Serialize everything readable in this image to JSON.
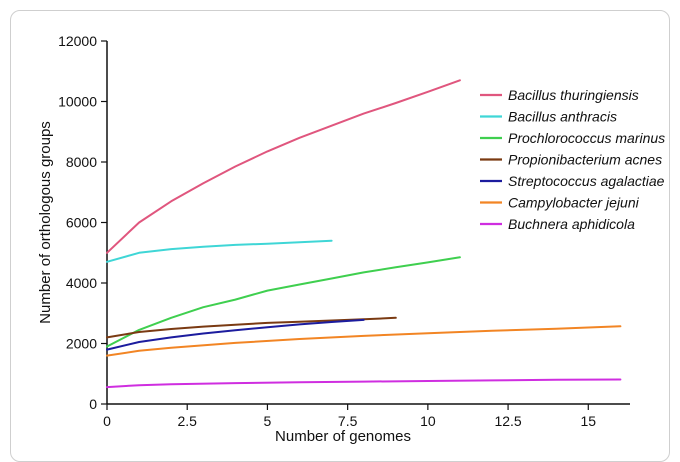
{
  "chart_data": {
    "type": "line",
    "xlabel": "Number of genomes",
    "ylabel": "Number of orthologous groups",
    "xlim": [
      0,
      16.3
    ],
    "ylim": [
      0,
      12000
    ],
    "x_ticks": [
      0,
      2.5,
      5,
      7.5,
      10,
      12.5,
      15
    ],
    "x_tick_labels": [
      "0",
      "2.5",
      "5",
      "7.5",
      "10",
      "12.5",
      "15"
    ],
    "y_ticks": [
      0,
      2000,
      4000,
      6000,
      8000,
      10000,
      12000
    ],
    "y_tick_labels": [
      "0",
      "2000",
      "4000",
      "6000",
      "8000",
      "10000",
      "12000"
    ],
    "grid": false,
    "legend_position": "top-right",
    "series": [
      {
        "name": "Bacillus thuringiensis",
        "color": "#e0567e",
        "x": [
          0,
          1,
          2,
          3,
          4,
          5,
          6,
          7,
          8,
          9,
          10,
          11
        ],
        "y": [
          5000,
          6000,
          6700,
          7300,
          7850,
          8350,
          8800,
          9200,
          9600,
          9950,
          10320,
          10700
        ]
      },
      {
        "name": "Bacillus anthracis",
        "color": "#3fd6d6",
        "x": [
          0,
          1,
          2,
          3,
          4,
          5,
          6,
          7
        ],
        "y": [
          4700,
          5000,
          5120,
          5200,
          5260,
          5300,
          5350,
          5400
        ]
      },
      {
        "name": "Prochlorococcus marinus",
        "color": "#3fcf4f",
        "x": [
          0,
          1,
          2,
          3,
          4,
          5,
          6,
          7,
          8,
          9,
          10,
          11
        ],
        "y": [
          1900,
          2450,
          2850,
          3200,
          3450,
          3750,
          3950,
          4150,
          4350,
          4520,
          4680,
          4850
        ]
      },
      {
        "name": "Propionibacterium acnes",
        "color": "#7a3a12",
        "x": [
          0,
          1,
          2,
          3,
          4,
          5,
          6,
          7,
          8,
          9
        ],
        "y": [
          2200,
          2380,
          2480,
          2560,
          2620,
          2680,
          2720,
          2760,
          2800,
          2850
        ]
      },
      {
        "name": "Streptococcus agalactiae",
        "color": "#1c1c9e",
        "x": [
          0,
          1,
          2,
          3,
          4,
          5,
          6,
          7,
          8
        ],
        "y": [
          1800,
          2050,
          2200,
          2330,
          2440,
          2540,
          2630,
          2710,
          2780
        ]
      },
      {
        "name": "Campylobacter jejuni",
        "color": "#f28524",
        "x": [
          0,
          1,
          2,
          4,
          6,
          8,
          10,
          12,
          14,
          16
        ],
        "y": [
          1600,
          1760,
          1860,
          2020,
          2150,
          2250,
          2340,
          2420,
          2490,
          2570
        ]
      },
      {
        "name": "Buchnera aphidicola",
        "color": "#cf2ee0",
        "x": [
          0,
          1,
          2,
          4,
          6,
          8,
          10,
          12,
          14,
          16
        ],
        "y": [
          560,
          620,
          650,
          690,
          720,
          740,
          760,
          780,
          800,
          810
        ]
      }
    ]
  }
}
